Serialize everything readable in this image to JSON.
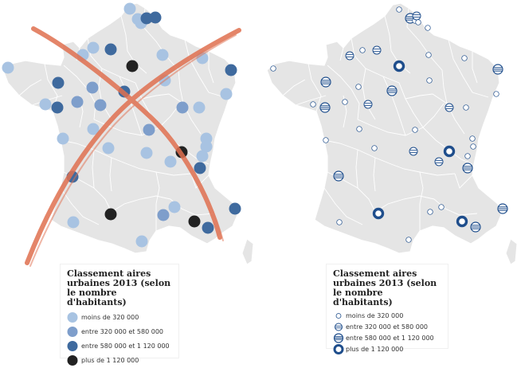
{
  "maps": [
    {
      "id": "left",
      "legend": {
        "title": "Classement aires urbaines 2013 (selon le nombre d'habitants)",
        "items": [
          {
            "label": "moins de 320 000",
            "size_class": 1,
            "color": "#a8c3e2"
          },
          {
            "label": "entre 320 000 et 580 000",
            "size_class": 2,
            "color": "#7e9ecb"
          },
          {
            "label": "entre 580 000 et 1 120 000",
            "size_class": 3,
            "color": "#3f6a9e"
          },
          {
            "label": "plus de 1 120 000",
            "size_class": 4,
            "color": "#222222"
          }
        ]
      },
      "crossed_out": true,
      "cross_color": "#e07050"
    },
    {
      "id": "right",
      "legend": {
        "title": "Classement aires urbaines 2013 (selon le nombre d'habitants)",
        "items": [
          {
            "label": "moins de 320 000",
            "size_class": 1
          },
          {
            "label": "entre 320 000 et 580 000",
            "size_class": 2
          },
          {
            "label": "entre 580 000 et 1 120 000",
            "size_class": 3
          },
          {
            "label": "plus de 1 120 000",
            "size_class": 4
          }
        ]
      },
      "crossed_out": false,
      "symbol_color": "#1f4e8c"
    }
  ],
  "region_fill": "#e5e5e5",
  "region_stroke": "#ffffff"
}
